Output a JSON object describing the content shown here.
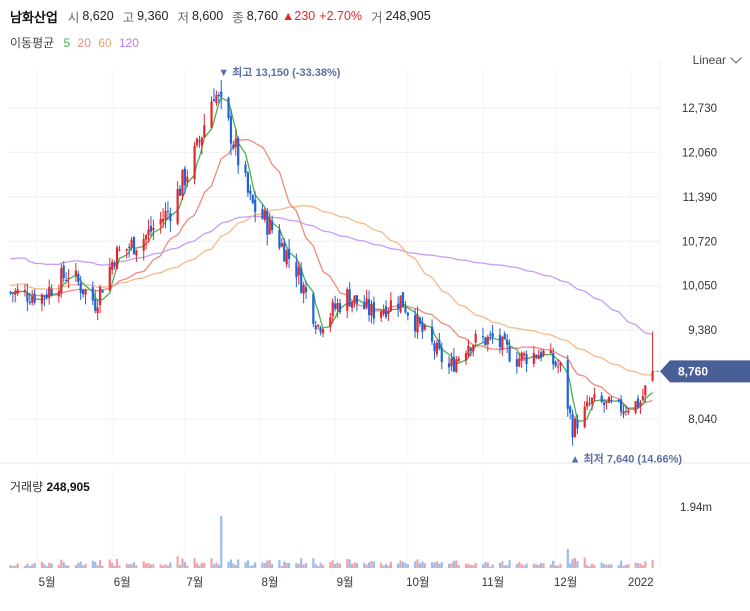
{
  "header": {
    "name": "남화산업",
    "open_label": "시",
    "open": "8,620",
    "high_label": "고",
    "high": "9,360",
    "low_label": "저",
    "low": "8,600",
    "close_label": "종",
    "close": "8,760",
    "change": "▲230",
    "change_pct": "+2.70%",
    "volume_label": "거",
    "volume": "248,905"
  },
  "ma": {
    "label": "이동평균",
    "p5": "5",
    "p20": "20",
    "p60": "60",
    "p120": "120"
  },
  "scale_mode": "Linear",
  "colors": {
    "up": "#e0282e",
    "down": "#1f63d6",
    "ma5": "#4caf50",
    "ma20": "#f08a80",
    "ma60": "#f7b98a",
    "ma120": "#c79cf5",
    "price_tag": "#4a5f97",
    "annot": "#5b6fa6"
  },
  "annotations": {
    "high": "▼ 최고 13,150 (-33.38%)",
    "low": "▲ 최저 7,640 (14.66%)",
    "price_tag": "8,760"
  },
  "volume_panel": {
    "label": "거래량",
    "value": "248,905",
    "tick": "1.94m"
  },
  "chart_data": {
    "type": "candlestick",
    "price_axis": {
      "ticks": [
        "12,730",
        "12,060",
        "11,390",
        "10,720",
        "10,050",
        "9,380",
        "8,040"
      ],
      "range": [
        7500,
        13300
      ]
    },
    "x_ticks": [
      "5월",
      "6월",
      "7월",
      "8월",
      "9월",
      "10월",
      "11월",
      "12월",
      "2022"
    ],
    "approx_close_path": [
      {
        "date": "2021-04-20",
        "close": 9950
      },
      {
        "date": "2021-05-03",
        "close": 9900
      },
      {
        "date": "2021-05-14",
        "close": 10250
      },
      {
        "date": "2021-05-25",
        "close": 9800
      },
      {
        "date": "2021-06-02",
        "close": 10500
      },
      {
        "date": "2021-06-15",
        "close": 10800
      },
      {
        "date": "2021-06-25",
        "close": 11200
      },
      {
        "date": "2021-07-06",
        "close": 12100
      },
      {
        "date": "2021-07-13",
        "close": 13000
      },
      {
        "date": "2021-07-20",
        "close": 12350
      },
      {
        "date": "2021-07-28",
        "close": 11300
      },
      {
        "date": "2021-08-06",
        "close": 10900
      },
      {
        "date": "2021-08-16",
        "close": 10300
      },
      {
        "date": "2021-08-25",
        "close": 9450
      },
      {
        "date": "2021-09-06",
        "close": 9900
      },
      {
        "date": "2021-09-16",
        "close": 9650
      },
      {
        "date": "2021-09-28",
        "close": 9850
      },
      {
        "date": "2021-10-08",
        "close": 9300
      },
      {
        "date": "2021-10-18",
        "close": 8800
      },
      {
        "date": "2021-10-26",
        "close": 9200
      },
      {
        "date": "2021-11-05",
        "close": 9250
      },
      {
        "date": "2021-11-15",
        "close": 8950
      },
      {
        "date": "2021-11-25",
        "close": 9050
      },
      {
        "date": "2021-12-03",
        "close": 8800
      },
      {
        "date": "2021-12-08",
        "close": 7900
      },
      {
        "date": "2021-12-16",
        "close": 8300
      },
      {
        "date": "2021-12-27",
        "close": 8200
      },
      {
        "date": "2022-01-05",
        "close": 8300
      },
      {
        "date": "2022-01-10",
        "close": 8760
      }
    ],
    "high": 13150,
    "low": 7640,
    "last_close": 8760,
    "last_volume": 248905,
    "volume_max_tick": 1940000
  }
}
